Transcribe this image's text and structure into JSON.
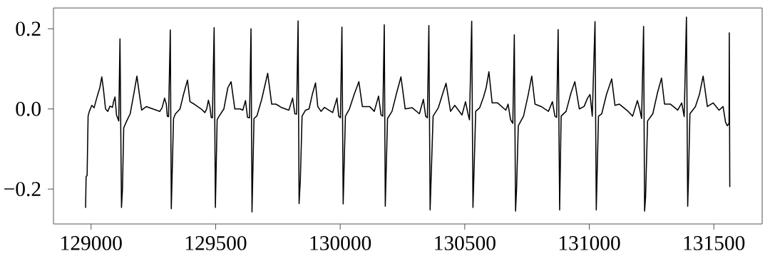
{
  "chart_data": {
    "type": "line",
    "color": "#000000",
    "x": [
      128978,
      128980,
      128984,
      128988,
      128993,
      129003,
      129012,
      129024,
      129035,
      129043,
      129050,
      129058,
      129067,
      129076,
      129086,
      129090,
      129096,
      129102,
      129111,
      129116,
      129122,
      129126,
      129131,
      129143,
      129157,
      129171,
      129184,
      129194,
      129203,
      129222,
      129252,
      129276,
      129285,
      129295,
      129302,
      129306,
      129311,
      129318,
      129322,
      129331,
      129338,
      129357,
      129371,
      129387,
      129397,
      129414,
      129442,
      129457,
      129464,
      129471,
      129477,
      129482,
      129487,
      129494,
      129499,
      129506,
      129514,
      129533,
      129549,
      129562,
      129577,
      129599,
      129609,
      129620,
      129628,
      129636,
      129642,
      129646,
      129654,
      129666,
      129685,
      129709,
      129725,
      129742,
      129766,
      129794,
      129809,
      129818,
      129825,
      129831,
      129835,
      129840,
      129847,
      129861,
      129875,
      129888,
      129901,
      129910,
      129923,
      129937,
      129970,
      129987,
      129994,
      130001,
      130007,
      130012,
      130021,
      130037,
      130056,
      130075,
      130089,
      130118,
      130137,
      130154,
      130164,
      130171,
      130177,
      130181,
      130190,
      130208,
      130227,
      130244,
      130261,
      130289,
      130318,
      130334,
      130343,
      130350,
      130356,
      130361,
      130373,
      130394,
      130413,
      130425,
      130443,
      130460,
      130489,
      130503,
      130513,
      130519,
      130528,
      130533,
      130536,
      130544,
      130560,
      130575,
      130586,
      130597,
      130610,
      130632,
      130665,
      130674,
      130684,
      130693,
      130699,
      130704,
      130708,
      130715,
      130736,
      130755,
      130769,
      130782,
      130807,
      130836,
      130852,
      130862,
      130869,
      130875,
      130881,
      130887,
      130907,
      130927,
      130942,
      130960,
      130979,
      130993,
      131003,
      131012,
      131023,
      131028,
      131037,
      131050,
      131069,
      131090,
      131103,
      131121,
      131156,
      131174,
      131193,
      131202,
      131210,
      131218,
      131222,
      131226,
      131234,
      131255,
      131274,
      131290,
      131302,
      131326,
      131355,
      131371,
      131381,
      131390,
      131395,
      131398,
      131404,
      131426,
      131442,
      131457,
      131474,
      131497,
      131521,
      131537,
      131547,
      131554,
      131561,
      131562,
      131564
    ],
    "values": [
      -0.247,
      -0.169,
      -0.166,
      -0.018,
      -0.006,
      0.009,
      0.003,
      0.03,
      0.053,
      0.08,
      0.047,
      0.0,
      -0.006,
      0.007,
      0.004,
      0.018,
      0.03,
      -0.015,
      -0.03,
      0.175,
      -0.246,
      -0.201,
      -0.047,
      -0.03,
      -0.012,
      0.036,
      0.082,
      0.036,
      -0.003,
      0.006,
      -0.001,
      -0.006,
      0.003,
      0.027,
      0.012,
      -0.018,
      -0.019,
      0.197,
      -0.249,
      -0.024,
      -0.013,
      0.0,
      0.036,
      0.072,
      0.018,
      0.012,
      0.0,
      -0.009,
      0.0,
      0.022,
      0.006,
      -0.021,
      -0.022,
      0.203,
      -0.246,
      -0.027,
      -0.018,
      0.0,
      0.053,
      0.068,
      0.0,
      0.0,
      -0.003,
      0.021,
      -0.021,
      -0.022,
      0.2,
      -0.257,
      -0.024,
      -0.017,
      0.024,
      0.089,
      0.012,
      0.012,
      0.003,
      -0.003,
      0.027,
      -0.012,
      -0.013,
      0.22,
      -0.236,
      -0.178,
      -0.018,
      -0.003,
      0.0,
      0.036,
      0.065,
      0.006,
      -0.006,
      0.004,
      -0.009,
      0.027,
      -0.018,
      -0.022,
      0.204,
      -0.237,
      -0.018,
      0.0,
      0.036,
      0.068,
      0.006,
      0.006,
      -0.006,
      0.032,
      -0.015,
      -0.018,
      0.21,
      -0.243,
      -0.024,
      -0.006,
      0.041,
      0.08,
      0.0,
      0.003,
      -0.012,
      0.024,
      -0.018,
      -0.022,
      0.208,
      -0.252,
      -0.018,
      0.003,
      0.041,
      0.064,
      -0.006,
      0.009,
      -0.015,
      0.018,
      -0.012,
      -0.027,
      0.219,
      -0.246,
      -0.184,
      -0.006,
      0.003,
      0.029,
      0.053,
      0.093,
      0.015,
      0.015,
      -0.003,
      0.012,
      -0.027,
      -0.036,
      0.185,
      -0.255,
      -0.201,
      -0.042,
      -0.018,
      0.036,
      0.082,
      0.012,
      0.006,
      -0.006,
      0.018,
      -0.018,
      -0.021,
      0.198,
      -0.252,
      -0.018,
      -0.006,
      0.041,
      0.068,
      0.0,
      0.006,
      0.027,
      0.036,
      -0.018,
      0.218,
      -0.252,
      -0.018,
      -0.012,
      0.036,
      0.075,
      0.009,
      0.012,
      -0.006,
      -0.018,
      0.021,
      0.0,
      -0.024,
      0.206,
      -0.255,
      -0.219,
      -0.03,
      -0.012,
      0.041,
      0.077,
      0.012,
      0.012,
      -0.003,
      0.015,
      -0.019,
      0.229,
      -0.243,
      -0.178,
      -0.012,
      0.006,
      0.036,
      0.082,
      0.006,
      0.015,
      -0.003,
      0.006,
      -0.033,
      -0.042,
      -0.036,
      0.19,
      -0.195
    ],
    "xlim": [
      128849,
      131694
    ],
    "ylim": [
      -0.287,
      0.252
    ],
    "xticks": [
      129000,
      129500,
      130000,
      130500,
      131000,
      131500
    ],
    "yticks": [
      {
        "value": -0.2,
        "label": "−0.2"
      },
      {
        "value": 0.0,
        "label": "0.0"
      },
      {
        "value": 0.2,
        "label": "0.2"
      }
    ]
  }
}
